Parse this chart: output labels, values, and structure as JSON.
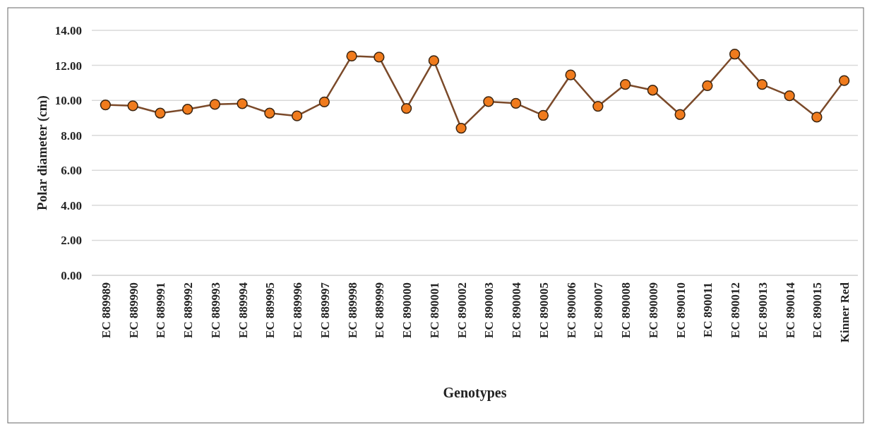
{
  "chart_data": {
    "type": "line",
    "xlabel": "Genotypes",
    "ylabel": "Polar diameter (cm)",
    "categories": [
      "EC 889989",
      "EC 889990",
      "EC 889991",
      "EC 889992",
      "EC 889993",
      "EC 889994",
      "EC 889995",
      "EC 889996",
      "EC 889997",
      "EC 889998",
      "EC 889999",
      "EC 890000",
      "EC 890001",
      "EC 890002",
      "EC 890003",
      "EC 890004",
      "EC 890005",
      "EC 890006",
      "EC 890007",
      "EC 890008",
      "EC 890009",
      "EC 890010",
      "EC 890011",
      "EC 890012",
      "EC 890013",
      "EC 890014",
      "EC 890015",
      "Kinner Red"
    ],
    "series": [
      {
        "color": "#7b4a2a",
        "values": [
          9.74,
          9.69,
          9.27,
          9.49,
          9.77,
          9.81,
          9.27,
          9.11,
          9.91,
          12.53,
          12.47,
          9.54,
          12.27,
          8.41,
          9.93,
          9.83,
          9.14,
          11.45,
          9.66,
          10.91,
          10.58,
          9.19,
          10.84,
          12.64,
          10.91,
          10.26,
          9.04,
          11.13
        ]
      }
    ],
    "ylim": [
      0,
      14
    ],
    "yticks": [
      {
        "value": 0,
        "label": "0.00"
      },
      {
        "value": 2,
        "label": "2.00"
      },
      {
        "value": 4,
        "label": "4.00"
      },
      {
        "value": 6,
        "label": "6.00"
      },
      {
        "value": 8,
        "label": "8.00"
      },
      {
        "value": 10,
        "label": "10.00"
      },
      {
        "value": 12,
        "label": "12.00"
      },
      {
        "value": 14,
        "label": "14.00"
      }
    ],
    "grid": "y",
    "marker": "circle",
    "line_style": "solid"
  }
}
